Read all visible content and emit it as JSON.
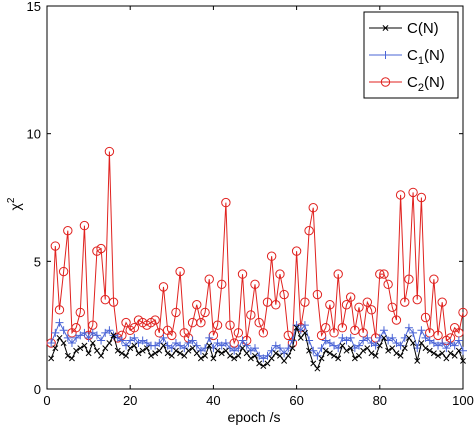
{
  "chart_data": {
    "type": "line",
    "title": "",
    "xlabel": "epoch /s",
    "ylabel_main": "χ",
    "ylabel_sup": "2",
    "xlim": [
      0,
      100
    ],
    "ylim": [
      0,
      15
    ],
    "xticks": [
      0,
      20,
      40,
      60,
      80,
      100
    ],
    "yticks": [
      0,
      5,
      10,
      15
    ],
    "grid": false,
    "legend_position": "top-right",
    "x": [
      1,
      2,
      3,
      4,
      5,
      6,
      7,
      8,
      9,
      10,
      11,
      12,
      13,
      14,
      15,
      16,
      17,
      18,
      19,
      20,
      21,
      22,
      23,
      24,
      25,
      26,
      27,
      28,
      29,
      30,
      31,
      32,
      33,
      34,
      35,
      36,
      37,
      38,
      39,
      40,
      41,
      42,
      43,
      44,
      45,
      46,
      47,
      48,
      49,
      50,
      51,
      52,
      53,
      54,
      55,
      56,
      57,
      58,
      59,
      60,
      61,
      62,
      63,
      64,
      65,
      66,
      67,
      68,
      69,
      70,
      71,
      72,
      73,
      74,
      75,
      76,
      77,
      78,
      79,
      80,
      81,
      82,
      83,
      84,
      85,
      86,
      87,
      88,
      89,
      90,
      91,
      92,
      93,
      94,
      95,
      96,
      97,
      98,
      99,
      100
    ],
    "series": [
      {
        "label_main": "C(N)",
        "label_sub": "",
        "label_rest": "",
        "color": "#000000",
        "marker": "x",
        "values": [
          1.2,
          1.6,
          2.0,
          1.8,
          1.3,
          1.2,
          1.5,
          1.6,
          1.7,
          1.4,
          1.8,
          1.5,
          1.3,
          1.6,
          1.8,
          2.1,
          1.5,
          1.4,
          1.3,
          1.6,
          1.7,
          1.4,
          1.5,
          1.6,
          1.3,
          1.4,
          1.5,
          1.7,
          1.4,
          1.3,
          1.5,
          1.4,
          1.3,
          1.5,
          1.6,
          1.4,
          1.2,
          1.3,
          1.7,
          1.2,
          1.5,
          1.4,
          1.5,
          1.3,
          1.2,
          1.3,
          1.6,
          1.4,
          1.2,
          1.3,
          1.0,
          0.9,
          1.0,
          1.2,
          1.4,
          1.3,
          1.1,
          1.3,
          1.6,
          2.4,
          2.0,
          2.2,
          1.5,
          1.0,
          0.8,
          1.2,
          1.5,
          1.4,
          1.3,
          1.2,
          1.7,
          1.5,
          1.6,
          1.2,
          1.3,
          1.5,
          1.6,
          1.4,
          1.3,
          1.7,
          2.0,
          1.5,
          1.6,
          1.4,
          1.3,
          1.6,
          2.0,
          1.8,
          1.1,
          1.8,
          1.6,
          1.5,
          1.4,
          1.3,
          1.4,
          1.2,
          1.4,
          1.3,
          1.5,
          1.1
        ]
      },
      {
        "label_main": "C",
        "label_sub": "1",
        "label_rest": "(N)",
        "color": "#4a64d6",
        "marker": "+",
        "values": [
          1.8,
          2.2,
          2.6,
          2.3,
          2.0,
          1.8,
          2.0,
          2.1,
          2.2,
          2.0,
          2.2,
          2.1,
          1.9,
          2.2,
          2.3,
          2.1,
          2.0,
          1.9,
          1.7,
          1.9,
          2.0,
          1.8,
          1.9,
          1.8,
          1.7,
          1.7,
          1.8,
          2.0,
          1.7,
          1.6,
          1.8,
          1.7,
          1.6,
          1.8,
          1.9,
          1.7,
          1.5,
          1.6,
          2.0,
          1.6,
          1.8,
          1.7,
          1.8,
          1.6,
          1.5,
          1.6,
          1.9,
          1.7,
          1.5,
          1.6,
          1.3,
          1.2,
          1.3,
          1.5,
          1.7,
          1.6,
          1.4,
          1.6,
          1.9,
          2.5,
          2.3,
          2.5,
          1.9,
          1.5,
          1.3,
          1.6,
          1.9,
          1.8,
          1.7,
          1.6,
          2.0,
          1.9,
          2.0,
          1.6,
          1.7,
          1.9,
          2.0,
          1.8,
          1.7,
          2.0,
          2.3,
          1.9,
          2.0,
          1.8,
          1.7,
          2.0,
          2.4,
          2.2,
          1.6,
          2.3,
          2.0,
          1.9,
          1.8,
          1.7,
          1.8,
          1.6,
          1.8,
          1.7,
          1.9,
          1.5
        ]
      },
      {
        "label_main": "C",
        "label_sub": "2",
        "label_rest": "(N)",
        "color": "#e0221f",
        "marker": "o",
        "values": [
          1.8,
          5.6,
          3.1,
          4.6,
          6.2,
          2.2,
          2.4,
          3.0,
          6.4,
          2.1,
          2.5,
          5.4,
          5.5,
          3.5,
          9.3,
          3.4,
          2.0,
          2.1,
          2.6,
          2.3,
          2.4,
          2.7,
          2.6,
          2.5,
          2.6,
          2.7,
          2.2,
          4.0,
          2.3,
          2.1,
          3.0,
          4.6,
          2.2,
          2.0,
          2.6,
          3.3,
          2.6,
          3.0,
          4.3,
          2.1,
          2.5,
          4.1,
          7.3,
          2.5,
          1.8,
          2.2,
          4.5,
          1.9,
          2.9,
          4.1,
          2.6,
          2.2,
          3.4,
          5.2,
          3.3,
          4.5,
          3.7,
          2.1,
          1.8,
          5.4,
          2.4,
          3.4,
          6.2,
          7.1,
          3.7,
          2.1,
          2.4,
          3.3,
          2.2,
          4.5,
          2.4,
          3.3,
          3.6,
          2.3,
          3.2,
          2.2,
          3.4,
          3.1,
          2.0,
          4.5,
          4.5,
          4.1,
          3.2,
          2.7,
          7.6,
          3.4,
          4.3,
          7.7,
          3.5,
          7.5,
          2.8,
          2.2,
          4.3,
          2.1,
          3.4,
          1.9,
          2.0,
          2.4,
          2.2,
          3.0
        ]
      }
    ]
  }
}
